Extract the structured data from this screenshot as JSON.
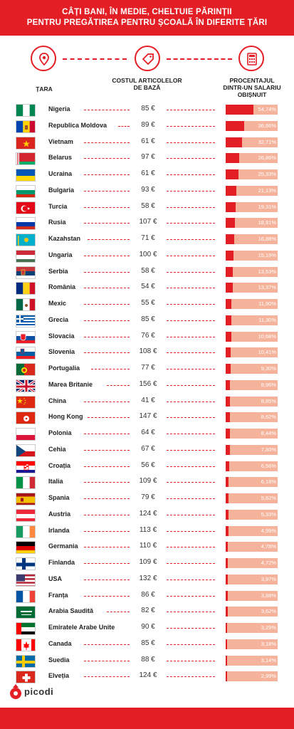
{
  "header": {
    "title_line1": "CÂȚI BANI, ÎN MEDIE, CHELTUIE PĂRINȚII",
    "title_line2": "PENTRU PREGĂTIREA PENTRU ȘCOALĂ ÎN DIFERITE ȚĂRI"
  },
  "columns": {
    "country": "ȚARA",
    "cost_line1": "COSTUL ARTICOLELOR",
    "cost_line2": "DE BAZĂ",
    "pct_line1": "PROCENTAJUL",
    "pct_line2": "DINTR-UN SALARIU",
    "pct_line3": "OBIȘNUIT"
  },
  "icons": [
    "location-pin-icon",
    "price-tag-icon",
    "calculator-icon"
  ],
  "colors": {
    "accent": "#e31e24",
    "bar_background": "#f6b39b"
  },
  "logo": {
    "text": "picodi"
  },
  "chart_data": {
    "type": "table",
    "columns": [
      "Țara",
      "Costul articolelor de bază",
      "Procentajul dintr-un salariu obișnuit"
    ],
    "rows": [
      {
        "country": "Nigeria",
        "cost": "85 €",
        "pct_label": "54,74%",
        "pct": 54.74,
        "flag": "nigeria"
      },
      {
        "country": "Republica Moldova",
        "cost": "89 €",
        "pct_label": "36,66%",
        "pct": 36.66,
        "flag": "moldova"
      },
      {
        "country": "Vietnam",
        "cost": "61 €",
        "pct_label": "32,71%",
        "pct": 32.71,
        "flag": "vietnam"
      },
      {
        "country": "Belarus",
        "cost": "97 €",
        "pct_label": "26,86%",
        "pct": 26.86,
        "flag": "belarus"
      },
      {
        "country": "Ucraina",
        "cost": "61 €",
        "pct_label": "25,33%",
        "pct": 25.33,
        "flag": "ukraine"
      },
      {
        "country": "Bulgaria",
        "cost": "93 €",
        "pct_label": "21,13%",
        "pct": 21.13,
        "flag": "bulgaria"
      },
      {
        "country": "Turcia",
        "cost": "58 €",
        "pct_label": "19,31%",
        "pct": 19.31,
        "flag": "turkey"
      },
      {
        "country": "Rusia",
        "cost": "107 €",
        "pct_label": "18,91%",
        "pct": 18.91,
        "flag": "russia"
      },
      {
        "country": "Kazahstan",
        "cost": "71 €",
        "pct_label": "16,88%",
        "pct": 16.88,
        "flag": "kazakhstan"
      },
      {
        "country": "Ungaria",
        "cost": "100 €",
        "pct_label": "15,19%",
        "pct": 15.19,
        "flag": "hungary"
      },
      {
        "country": "Serbia",
        "cost": "58 €",
        "pct_label": "13,53%",
        "pct": 13.53,
        "flag": "serbia"
      },
      {
        "country": "România",
        "cost": "54 €",
        "pct_label": "13,37%",
        "pct": 13.37,
        "flag": "romania"
      },
      {
        "country": "Mexic",
        "cost": "55 €",
        "pct_label": "11,90%",
        "pct": 11.9,
        "flag": "mexico"
      },
      {
        "country": "Grecia",
        "cost": "85 €",
        "pct_label": "11,30%",
        "pct": 11.3,
        "flag": "greece"
      },
      {
        "country": "Slovacia",
        "cost": "76 €",
        "pct_label": "10,68%",
        "pct": 10.68,
        "flag": "slovakia"
      },
      {
        "country": "Slovenia",
        "cost": "108 €",
        "pct_label": "10,41%",
        "pct": 10.41,
        "flag": "slovenia"
      },
      {
        "country": "Portugalia",
        "cost": "77 €",
        "pct_label": "9,30%",
        "pct": 9.3,
        "flag": "portugal"
      },
      {
        "country": "Marea Britanie",
        "cost": "156 €",
        "pct_label": "8,96%",
        "pct": 8.96,
        "flag": "uk"
      },
      {
        "country": "China",
        "cost": "41 €",
        "pct_label": "8,85%",
        "pct": 8.85,
        "flag": "china"
      },
      {
        "country": "Hong Kong",
        "cost": "147 €",
        "pct_label": "8,62%",
        "pct": 8.62,
        "flag": "hongkong"
      },
      {
        "country": "Polonia",
        "cost": "64 €",
        "pct_label": "8,44%",
        "pct": 8.44,
        "flag": "poland"
      },
      {
        "country": "Cehia",
        "cost": "67 €",
        "pct_label": "7,80%",
        "pct": 7.8,
        "flag": "czech"
      },
      {
        "country": "Croația",
        "cost": "56 €",
        "pct_label": "6,56%",
        "pct": 6.56,
        "flag": "croatia"
      },
      {
        "country": "Italia",
        "cost": "109 €",
        "pct_label": "6,18%",
        "pct": 6.18,
        "flag": "italy"
      },
      {
        "country": "Spania",
        "cost": "79 €",
        "pct_label": "5,62%",
        "pct": 5.62,
        "flag": "spain"
      },
      {
        "country": "Austria",
        "cost": "124 €",
        "pct_label": "5,33%",
        "pct": 5.33,
        "flag": "austria"
      },
      {
        "country": "Irlanda",
        "cost": "113 €",
        "pct_label": "4,99%",
        "pct": 4.99,
        "flag": "ireland"
      },
      {
        "country": "Germania",
        "cost": "110 €",
        "pct_label": "4,78%",
        "pct": 4.78,
        "flag": "germany"
      },
      {
        "country": "Finlanda",
        "cost": "109 €",
        "pct_label": "4,72%",
        "pct": 4.72,
        "flag": "finland"
      },
      {
        "country": "USA",
        "cost": "132 €",
        "pct_label": "3,97%",
        "pct": 3.97,
        "flag": "usa"
      },
      {
        "country": "Franța",
        "cost": "86 €",
        "pct_label": "3,88%",
        "pct": 3.88,
        "flag": "france"
      },
      {
        "country": "Arabia Saudită",
        "cost": "82 €",
        "pct_label": "3,62%",
        "pct": 3.62,
        "flag": "saudi"
      },
      {
        "country": "Emiratele Arabe Unite",
        "cost": "90 €",
        "pct_label": "3,29%",
        "pct": 3.29,
        "flag": "uae"
      },
      {
        "country": "Canada",
        "cost": "85 €",
        "pct_label": "3,18%",
        "pct": 3.18,
        "flag": "canada"
      },
      {
        "country": "Suedia",
        "cost": "88 €",
        "pct_label": "3,14%",
        "pct": 3.14,
        "flag": "sweden"
      },
      {
        "country": "Elveția",
        "cost": "124 €",
        "pct_label": "2,99%",
        "pct": 2.99,
        "flag": "switzerland"
      }
    ]
  }
}
